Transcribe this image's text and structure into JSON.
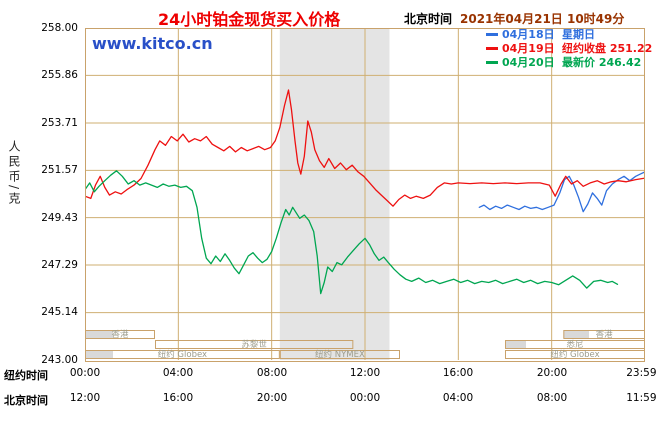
{
  "colors": {
    "title": "#EE0000",
    "datetime": "#993300",
    "watermark": "#2950C8",
    "grid": "#CFAF72",
    "border": "#C9A26B",
    "band": "#E4E4E4",
    "session_label": "#9C9C8C",
    "session_fill": "#D9D9D9",
    "axis_text": "#000000"
  },
  "header": {
    "title": "24小时铂金现货买入价格",
    "timezone_label": "北京时间",
    "datetime": "2021年04月21日 10时49分"
  },
  "watermark": "www.kitco.cn",
  "legend": [
    {
      "date": "04月18日",
      "note": "星期日"
    },
    {
      "date": "04月19日",
      "note": "纽约收盘 251.22"
    },
    {
      "date": "04月20日",
      "note": "最新价 246.42"
    }
  ],
  "y_axis": {
    "unit": "人民币/克",
    "labels": [
      "258.00",
      "255.86",
      "253.71",
      "251.57",
      "249.43",
      "247.29",
      "245.14",
      "243.00"
    ]
  },
  "x_axis": {
    "ny_label": "纽约时间",
    "beijing_label": "北京时间",
    "ny_ticks": [
      "00:00",
      "04:00",
      "08:00",
      "12:00",
      "16:00",
      "20:00",
      "23:59"
    ],
    "beijing_ticks": [
      "12:00",
      "16:00",
      "20:00",
      "00:00",
      "04:00",
      "08:00",
      "11:59"
    ]
  },
  "sessions": {
    "rows": [
      {
        "boxes": [
          {
            "label": "香港",
            "start_hour": 0,
            "end_hour": 3,
            "fill_end_hour": 1.2
          },
          {
            "label": "香港",
            "start_hour": 20.5,
            "end_hour": 24,
            "fill_end_hour": 21.6
          }
        ]
      },
      {
        "boxes": [
          {
            "label": "苏黎世",
            "start_hour": 3,
            "end_hour": 11.5
          },
          {
            "label": "悉尼",
            "start_hour": 18,
            "end_hour": 24,
            "fill_end_hour": 18.9
          }
        ]
      },
      {
        "boxes": [
          {
            "label": "纽约 Globex",
            "start_hour": 0,
            "end_hour": 8.35,
            "fill_end_hour": 1.2
          },
          {
            "label": "纽约 NYMEX",
            "start_hour": 8.35,
            "end_hour": 13.5
          },
          {
            "label": "纽约 Globex",
            "start_hour": 18,
            "end_hour": 24
          }
        ]
      }
    ]
  },
  "chart_data": {
    "type": "line",
    "title": "24小时铂金现货买入价格",
    "ylabel": "人民币/克",
    "ylim": [
      243.0,
      258.0
    ],
    "x_unit": "hours, New York time (00:00–23:59)",
    "xlim": [
      0,
      24
    ],
    "y_gridline_values": [
      258.0,
      255.86,
      253.71,
      251.57,
      249.43,
      247.29,
      245.14,
      243.0
    ],
    "x_gridline_hours": [
      0,
      4,
      8,
      12,
      16,
      20,
      24
    ],
    "nymex_band_hours": [
      8.35,
      13.05
    ],
    "legend_position": "top-right",
    "series": [
      {
        "name": "04月18日",
        "note": "星期日",
        "color": "#2F6FDE",
        "points": [
          [
            16.9,
            249.9
          ],
          [
            17.1,
            250.0
          ],
          [
            17.35,
            249.8
          ],
          [
            17.6,
            249.95
          ],
          [
            17.85,
            249.85
          ],
          [
            18.1,
            250.0
          ],
          [
            18.35,
            249.9
          ],
          [
            18.6,
            249.8
          ],
          [
            18.85,
            249.95
          ],
          [
            19.1,
            249.85
          ],
          [
            19.35,
            249.9
          ],
          [
            19.6,
            249.8
          ],
          [
            19.85,
            249.9
          ],
          [
            20.1,
            250.0
          ],
          [
            20.35,
            250.55
          ],
          [
            20.55,
            251.15
          ],
          [
            20.75,
            251.3
          ],
          [
            20.95,
            250.9
          ],
          [
            21.15,
            250.35
          ],
          [
            21.35,
            249.7
          ],
          [
            21.55,
            250.05
          ],
          [
            21.75,
            250.55
          ],
          [
            21.95,
            250.3
          ],
          [
            22.15,
            250.0
          ],
          [
            22.35,
            250.65
          ],
          [
            22.6,
            250.95
          ],
          [
            22.85,
            251.15
          ],
          [
            23.1,
            251.3
          ],
          [
            23.35,
            251.1
          ],
          [
            23.6,
            251.3
          ],
          [
            23.8,
            251.4
          ],
          [
            24,
            251.5
          ]
        ]
      },
      {
        "name": "04月19日",
        "note": "纽约收盘",
        "close": 251.22,
        "color": "#EE1111",
        "points": [
          [
            0,
            250.4
          ],
          [
            0.25,
            250.3
          ],
          [
            0.45,
            250.9
          ],
          [
            0.65,
            251.3
          ],
          [
            0.85,
            250.8
          ],
          [
            1.05,
            250.45
          ],
          [
            1.3,
            250.6
          ],
          [
            1.55,
            250.5
          ],
          [
            1.8,
            250.7
          ],
          [
            2.1,
            250.9
          ],
          [
            2.4,
            251.2
          ],
          [
            2.7,
            251.8
          ],
          [
            3.0,
            252.5
          ],
          [
            3.2,
            252.9
          ],
          [
            3.45,
            252.7
          ],
          [
            3.7,
            253.1
          ],
          [
            3.95,
            252.9
          ],
          [
            4.2,
            253.2
          ],
          [
            4.45,
            252.85
          ],
          [
            4.7,
            253.0
          ],
          [
            4.95,
            252.9
          ],
          [
            5.2,
            253.1
          ],
          [
            5.45,
            252.75
          ],
          [
            5.7,
            252.6
          ],
          [
            5.95,
            252.45
          ],
          [
            6.2,
            252.65
          ],
          [
            6.45,
            252.4
          ],
          [
            6.7,
            252.6
          ],
          [
            6.95,
            252.45
          ],
          [
            7.2,
            252.55
          ],
          [
            7.45,
            252.65
          ],
          [
            7.7,
            252.5
          ],
          [
            7.95,
            252.6
          ],
          [
            8.15,
            252.9
          ],
          [
            8.35,
            253.5
          ],
          [
            8.55,
            254.5
          ],
          [
            8.72,
            255.2
          ],
          [
            8.85,
            254.3
          ],
          [
            9.0,
            252.9
          ],
          [
            9.12,
            251.9
          ],
          [
            9.25,
            251.4
          ],
          [
            9.4,
            252.2
          ],
          [
            9.55,
            253.8
          ],
          [
            9.7,
            253.3
          ],
          [
            9.85,
            252.5
          ],
          [
            10.05,
            252.0
          ],
          [
            10.25,
            251.7
          ],
          [
            10.45,
            252.1
          ],
          [
            10.7,
            251.65
          ],
          [
            10.95,
            251.9
          ],
          [
            11.2,
            251.6
          ],
          [
            11.45,
            251.8
          ],
          [
            11.7,
            251.5
          ],
          [
            11.95,
            251.3
          ],
          [
            12.2,
            251.0
          ],
          [
            12.45,
            250.7
          ],
          [
            12.7,
            250.45
          ],
          [
            12.95,
            250.2
          ],
          [
            13.2,
            249.95
          ],
          [
            13.45,
            250.25
          ],
          [
            13.7,
            250.45
          ],
          [
            13.95,
            250.3
          ],
          [
            14.2,
            250.4
          ],
          [
            14.5,
            250.3
          ],
          [
            14.8,
            250.45
          ],
          [
            15.1,
            250.8
          ],
          [
            15.4,
            251.0
          ],
          [
            15.7,
            250.95
          ],
          [
            16.0,
            251.0
          ],
          [
            16.5,
            250.97
          ],
          [
            17.0,
            251.0
          ],
          [
            17.5,
            250.97
          ],
          [
            18.0,
            251.0
          ],
          [
            18.5,
            250.97
          ],
          [
            19.0,
            251.0
          ],
          [
            19.5,
            251.0
          ],
          [
            19.9,
            250.9
          ],
          [
            20.15,
            250.4
          ],
          [
            20.4,
            250.95
          ],
          [
            20.6,
            251.3
          ],
          [
            20.85,
            250.95
          ],
          [
            21.1,
            251.1
          ],
          [
            21.35,
            250.85
          ],
          [
            21.65,
            251.0
          ],
          [
            21.95,
            251.1
          ],
          [
            22.25,
            250.95
          ],
          [
            22.55,
            251.05
          ],
          [
            22.85,
            251.1
          ],
          [
            23.2,
            251.05
          ],
          [
            23.6,
            251.15
          ],
          [
            24,
            251.22
          ]
        ]
      },
      {
        "name": "04月20日",
        "note": "最新价",
        "latest": 246.42,
        "color": "#00A651",
        "points": [
          [
            0,
            250.7
          ],
          [
            0.2,
            251.0
          ],
          [
            0.4,
            250.6
          ],
          [
            0.6,
            250.85
          ],
          [
            0.85,
            251.1
          ],
          [
            1.1,
            251.35
          ],
          [
            1.35,
            251.55
          ],
          [
            1.6,
            251.3
          ],
          [
            1.85,
            250.95
          ],
          [
            2.1,
            251.1
          ],
          [
            2.35,
            250.9
          ],
          [
            2.6,
            251.0
          ],
          [
            2.85,
            250.9
          ],
          [
            3.1,
            250.8
          ],
          [
            3.35,
            250.95
          ],
          [
            3.6,
            250.85
          ],
          [
            3.85,
            250.9
          ],
          [
            4.1,
            250.8
          ],
          [
            4.35,
            250.85
          ],
          [
            4.6,
            250.65
          ],
          [
            4.8,
            249.9
          ],
          [
            5.0,
            248.5
          ],
          [
            5.2,
            247.6
          ],
          [
            5.4,
            247.35
          ],
          [
            5.6,
            247.7
          ],
          [
            5.8,
            247.45
          ],
          [
            6.0,
            247.8
          ],
          [
            6.2,
            247.5
          ],
          [
            6.4,
            247.15
          ],
          [
            6.6,
            246.9
          ],
          [
            6.8,
            247.3
          ],
          [
            7.0,
            247.7
          ],
          [
            7.2,
            247.85
          ],
          [
            7.4,
            247.6
          ],
          [
            7.6,
            247.4
          ],
          [
            7.8,
            247.55
          ],
          [
            8.0,
            247.9
          ],
          [
            8.2,
            248.5
          ],
          [
            8.4,
            249.2
          ],
          [
            8.6,
            249.8
          ],
          [
            8.75,
            249.55
          ],
          [
            8.9,
            249.9
          ],
          [
            9.05,
            249.65
          ],
          [
            9.2,
            249.4
          ],
          [
            9.4,
            249.55
          ],
          [
            9.6,
            249.3
          ],
          [
            9.8,
            248.8
          ],
          [
            9.95,
            247.7
          ],
          [
            10.1,
            246.0
          ],
          [
            10.25,
            246.5
          ],
          [
            10.4,
            247.2
          ],
          [
            10.6,
            247.0
          ],
          [
            10.8,
            247.4
          ],
          [
            11.0,
            247.3
          ],
          [
            11.25,
            247.65
          ],
          [
            11.5,
            247.95
          ],
          [
            11.75,
            248.25
          ],
          [
            12.0,
            248.5
          ],
          [
            12.2,
            248.2
          ],
          [
            12.4,
            247.8
          ],
          [
            12.6,
            247.5
          ],
          [
            12.8,
            247.65
          ],
          [
            13.0,
            247.4
          ],
          [
            13.25,
            247.1
          ],
          [
            13.5,
            246.85
          ],
          [
            13.75,
            246.65
          ],
          [
            14.0,
            246.55
          ],
          [
            14.3,
            246.7
          ],
          [
            14.6,
            246.5
          ],
          [
            14.9,
            246.6
          ],
          [
            15.2,
            246.45
          ],
          [
            15.5,
            246.55
          ],
          [
            15.8,
            246.65
          ],
          [
            16.1,
            246.5
          ],
          [
            16.4,
            246.6
          ],
          [
            16.7,
            246.45
          ],
          [
            17.0,
            246.55
          ],
          [
            17.3,
            246.5
          ],
          [
            17.6,
            246.6
          ],
          [
            17.9,
            246.45
          ],
          [
            18.2,
            246.55
          ],
          [
            18.5,
            246.65
          ],
          [
            18.8,
            246.5
          ],
          [
            19.1,
            246.6
          ],
          [
            19.4,
            246.45
          ],
          [
            19.7,
            246.55
          ],
          [
            20.0,
            246.5
          ],
          [
            20.3,
            246.4
          ],
          [
            20.6,
            246.6
          ],
          [
            20.9,
            246.8
          ],
          [
            21.2,
            246.6
          ],
          [
            21.5,
            246.25
          ],
          [
            21.8,
            246.55
          ],
          [
            22.1,
            246.6
          ],
          [
            22.4,
            246.5
          ],
          [
            22.6,
            246.55
          ],
          [
            22.82,
            246.42
          ]
        ]
      }
    ]
  }
}
